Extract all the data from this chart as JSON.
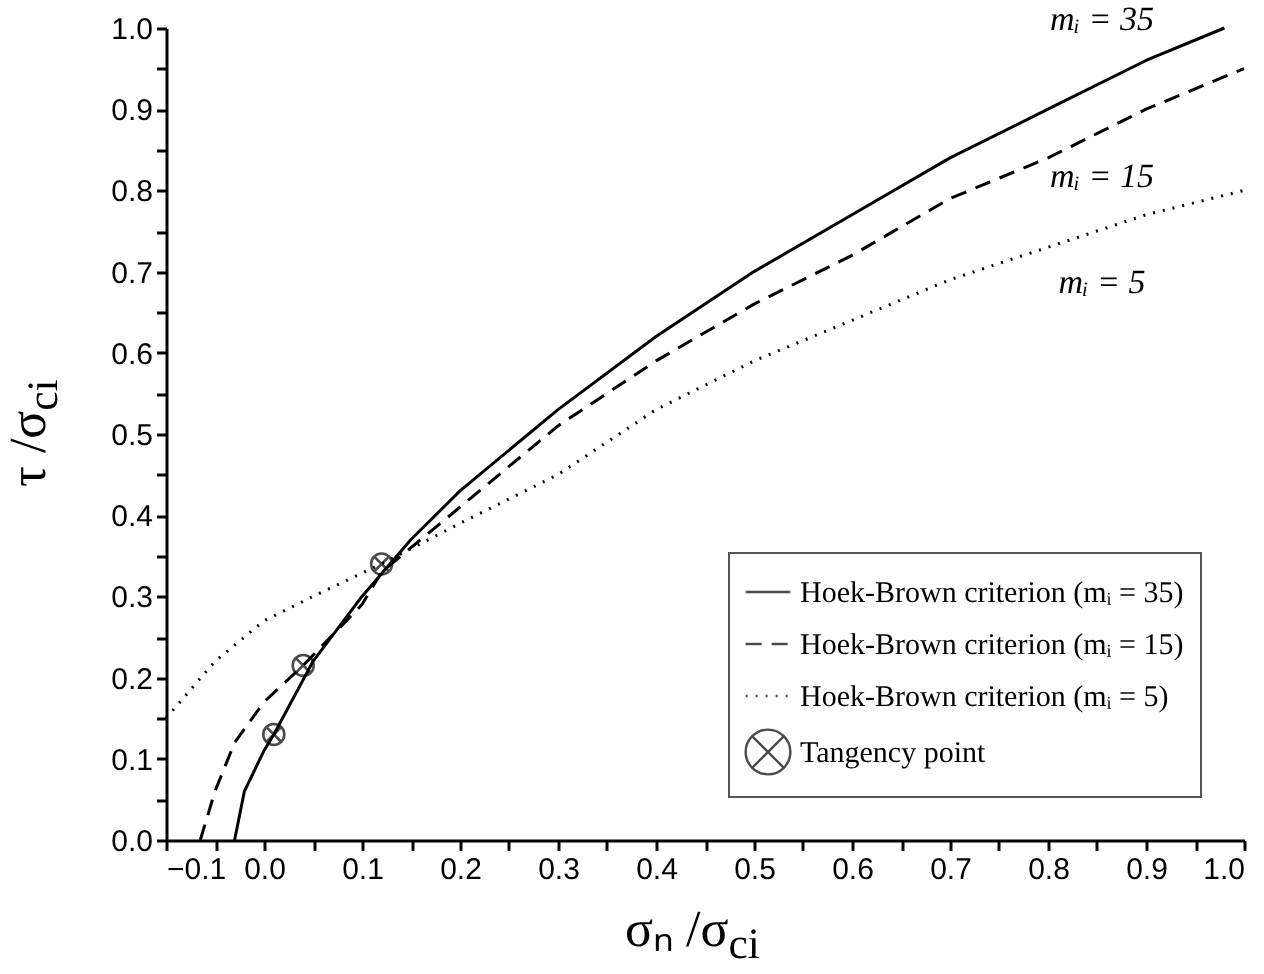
{
  "chart_data": {
    "type": "line",
    "xlabel": "σₙ /σ$_{ci}$",
    "ylabel": "τ /σ$_{ci}$",
    "xlim": [
      -0.1,
      1.0
    ],
    "ylim": [
      0,
      1.0
    ],
    "xticks": [
      -0.1,
      {
        "value": -0.05,
        "label": null
      },
      {
        "value": 0,
        "label": "0.0"
      },
      {
        "value": 0.05,
        "label": null
      },
      0.1,
      {
        "value": 0.15,
        "label": null
      },
      0.2,
      {
        "value": 0.25,
        "label": null
      },
      0.3,
      {
        "value": 0.35,
        "label": null
      },
      0.4,
      {
        "value": 0.45,
        "label": null
      },
      0.5,
      {
        "value": 0.55,
        "label": null
      },
      0.6,
      {
        "value": 0.65,
        "label": null
      },
      0.7,
      {
        "value": 0.75,
        "label": null
      },
      0.8,
      {
        "value": 0.85,
        "label": null
      },
      0.9,
      {
        "value": 0.95,
        "label": null
      },
      {
        "value": 1.0,
        "label": "1.0"
      }
    ],
    "yticks": [
      {
        "value": 0,
        "label": "0.0"
      },
      {
        "value": 0.05,
        "label": null
      },
      0.1,
      {
        "value": 0.15,
        "label": null
      },
      0.2,
      {
        "value": 0.25,
        "label": null
      },
      0.3,
      {
        "value": 0.35,
        "label": null
      },
      0.4,
      {
        "value": 0.45,
        "label": null
      },
      0.5,
      {
        "value": 0.55,
        "label": null
      },
      0.6,
      {
        "value": 0.65,
        "label": null
      },
      0.7,
      {
        "value": 0.75,
        "label": null
      },
      0.8,
      {
        "value": 0.85,
        "label": null
      },
      0.9,
      {
        "value": 0.95,
        "label": null
      },
      {
        "value": 1.0,
        "label": "1.0"
      }
    ],
    "grid": false,
    "legend": "bottom right",
    "series": [
      {
        "name": "Hoek-Brown criterion (mᵢ = 35)",
        "color": "#000000",
        "line_style": "solid",
        "x": [
          -0.03,
          -0.02,
          0.0,
          0.01,
          0.05,
          0.1,
          0.15,
          0.2,
          0.3,
          0.4,
          0.5,
          0.6,
          0.7,
          0.8,
          0.9,
          0.98
        ],
        "values": [
          0,
          0.06,
          0.11,
          0.13,
          0.22,
          0.3,
          0.37,
          0.43,
          0.53,
          0.62,
          0.7,
          0.77,
          0.84,
          0.9,
          0.96,
          1.0
        ]
      },
      {
        "name": "Hoek-Brown criterion (mᵢ = 15)",
        "color": "#000000",
        "line_style": "dashed",
        "x": [
          -0.065,
          -0.05,
          -0.03,
          0.0,
          0.04,
          0.1,
          0.12,
          0.2,
          0.3,
          0.4,
          0.5,
          0.6,
          0.7,
          0.8,
          0.9,
          1.0
        ],
        "values": [
          0,
          0.06,
          0.12,
          0.17,
          0.215,
          0.29,
          0.33,
          0.41,
          0.51,
          0.59,
          0.66,
          0.72,
          0.79,
          0.84,
          0.9,
          0.95
        ]
      },
      {
        "name": "Hoek-Brown criterion (mᵢ = 5)",
        "color": "#000000",
        "line_style": "dotted",
        "x": [
          -0.1,
          -0.05,
          0.0,
          0.05,
          0.12,
          0.2,
          0.3,
          0.4,
          0.5,
          0.6,
          0.7,
          0.8,
          0.9,
          1.0
        ],
        "values": [
          0.15,
          0.22,
          0.27,
          0.3,
          0.34,
          0.39,
          0.45,
          0.53,
          0.59,
          0.64,
          0.69,
          0.73,
          0.77,
          0.8
        ]
      },
      {
        "name": "Tangency point",
        "type": "scatter",
        "color": "#000000",
        "marker": "cross",
        "x": [
          0.01,
          0.04,
          0.12
        ],
        "values": [
          0.13,
          0.215,
          0.34
        ]
      }
    ],
    "annotations": [
      "mᵢ = 35",
      "mᵢ = 15",
      "mᵢ = 5"
    ]
  }
}
